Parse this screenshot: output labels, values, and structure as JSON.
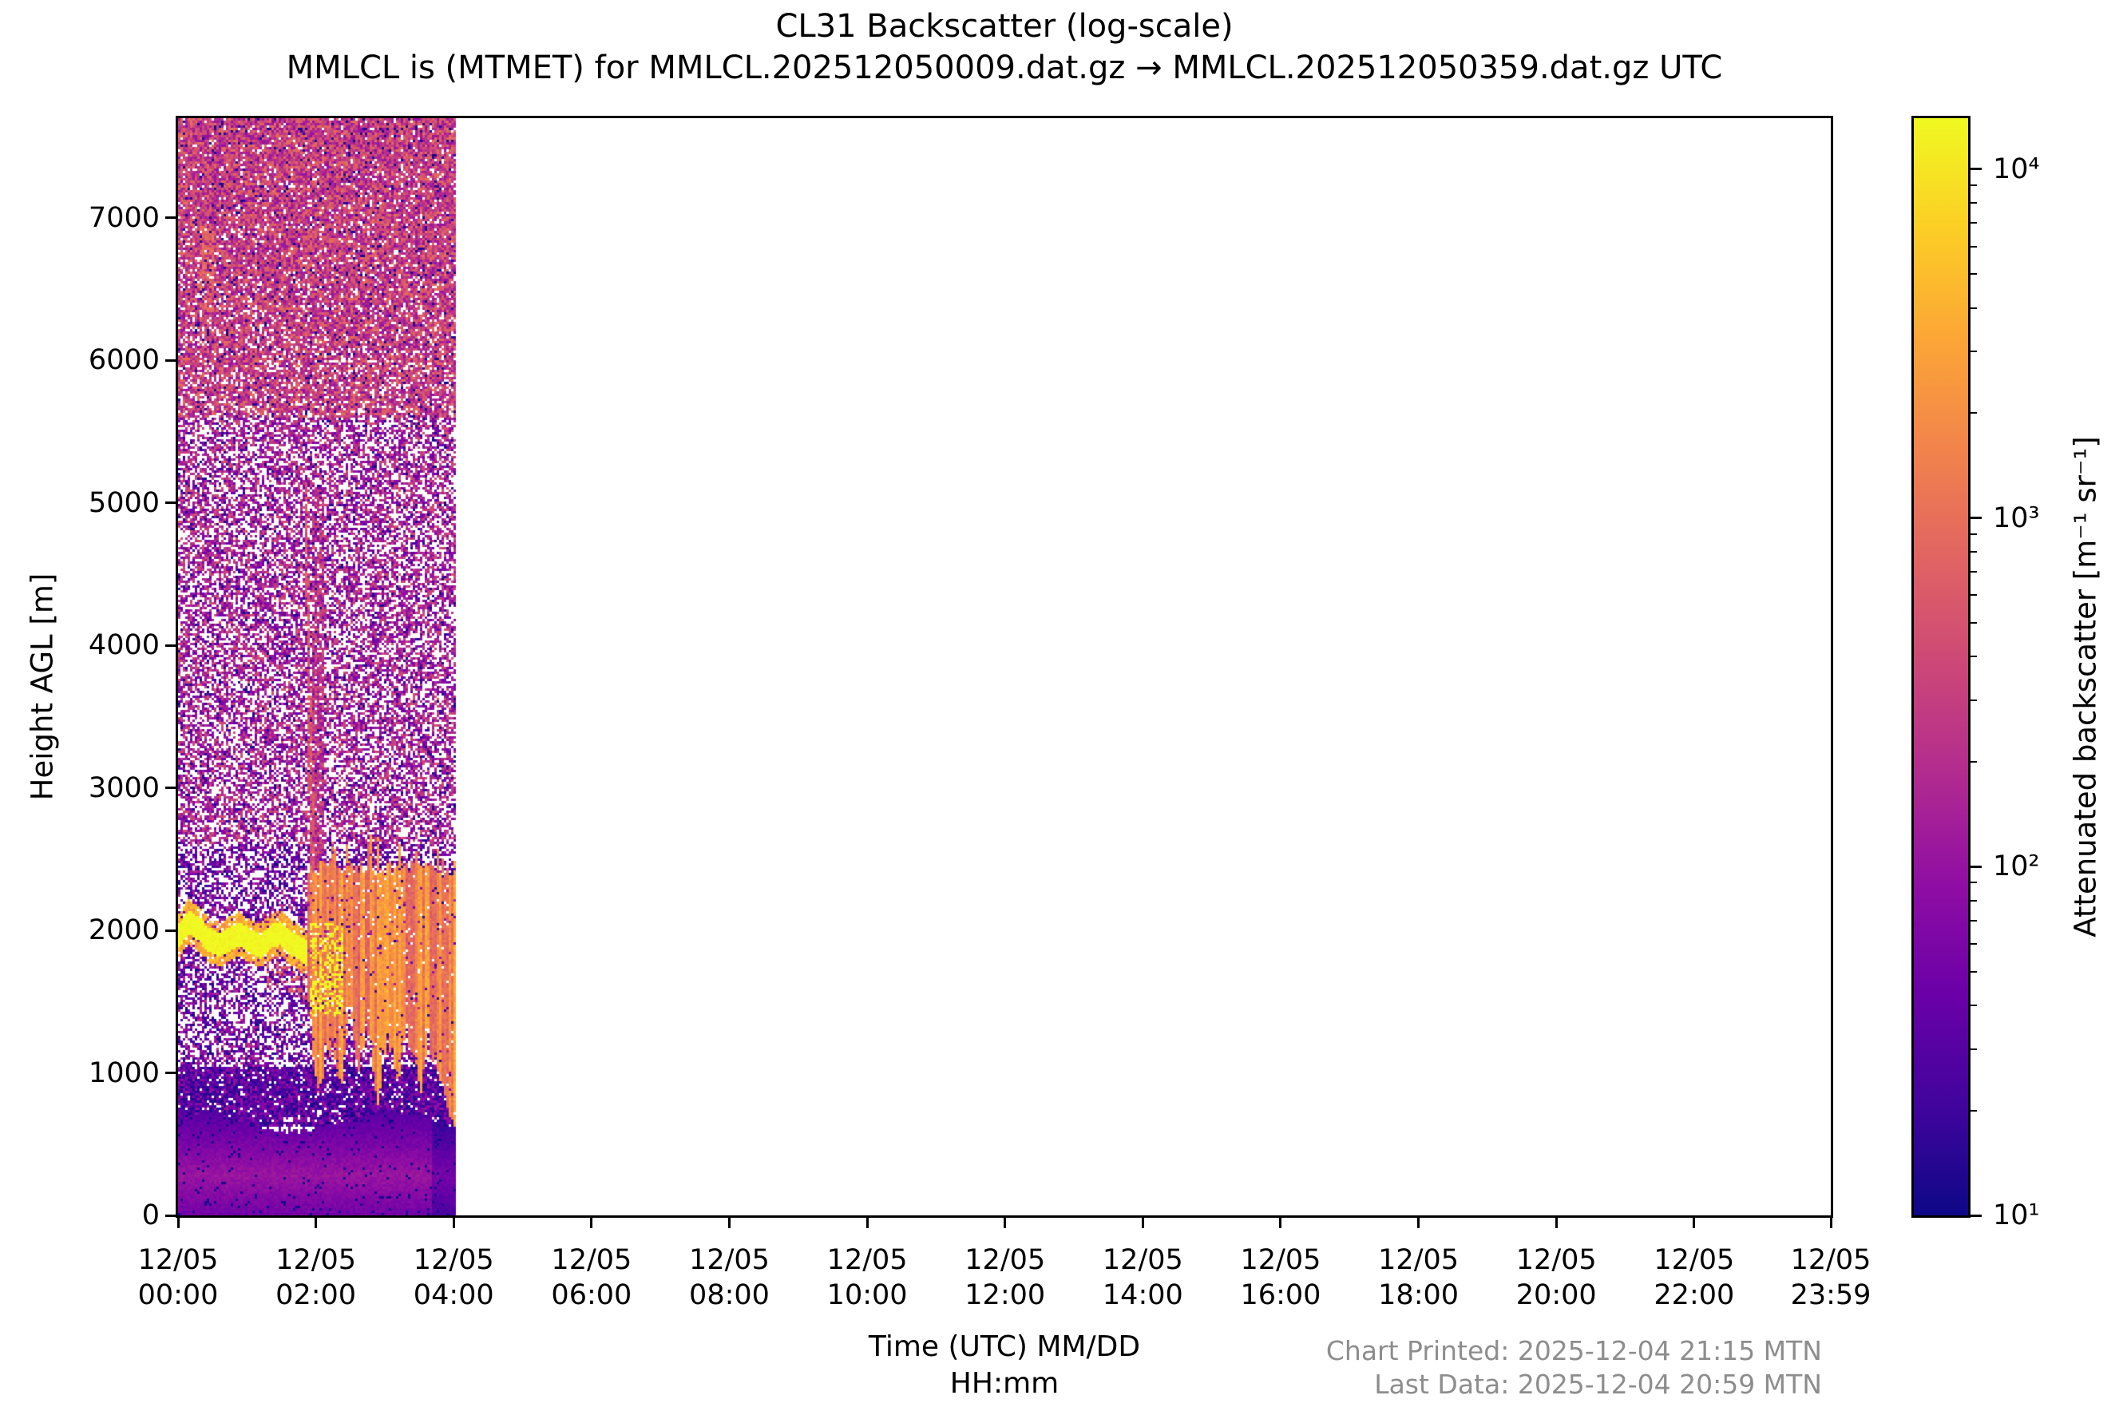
{
  "chart_data": {
    "type": "heatmap",
    "title": "CL31 Backscatter (log-scale)",
    "subtitle": "MMLCL is (MTMET) for MMLCL.202512050009.dat.gz → MMLCL.202512050359.dat.gz UTC",
    "xlabel_line1": "Time (UTC) MM/DD",
    "xlabel_line2": "HH:mm",
    "ylabel": "Height AGL [m]",
    "colorbar_label": "Attenuated backscatter [m⁻¹ sr⁻¹]",
    "ylim": [
      0,
      7700
    ],
    "xlim_hours": [
      0,
      23.983
    ],
    "grid": false,
    "y_ticks": [
      0,
      1000,
      2000,
      3000,
      4000,
      5000,
      6000,
      7000
    ],
    "x_ticks": [
      {
        "hours": 0,
        "date": "12/05",
        "time": "00:00"
      },
      {
        "hours": 2,
        "date": "12/05",
        "time": "02:00"
      },
      {
        "hours": 4,
        "date": "12/05",
        "time": "04:00"
      },
      {
        "hours": 6,
        "date": "12/05",
        "time": "06:00"
      },
      {
        "hours": 8,
        "date": "12/05",
        "time": "08:00"
      },
      {
        "hours": 10,
        "date": "12/05",
        "time": "10:00"
      },
      {
        "hours": 12,
        "date": "12/05",
        "time": "12:00"
      },
      {
        "hours": 14,
        "date": "12/05",
        "time": "14:00"
      },
      {
        "hours": 16,
        "date": "12/05",
        "time": "16:00"
      },
      {
        "hours": 18,
        "date": "12/05",
        "time": "18:00"
      },
      {
        "hours": 20,
        "date": "12/05",
        "time": "20:00"
      },
      {
        "hours": 22,
        "date": "12/05",
        "time": "22:00"
      },
      {
        "hours": 23.983,
        "date": "12/05",
        "time": "23:59"
      }
    ],
    "colorbar_ticks": [
      {
        "value": 10,
        "label": "10¹"
      },
      {
        "value": 100,
        "label": "10²"
      },
      {
        "value": 1000,
        "label": "10³"
      },
      {
        "value": 10000,
        "label": "10⁴"
      }
    ],
    "value_scale": {
      "scale": "log",
      "vmin": 10,
      "vmax": 14000
    },
    "colormap": {
      "name": "plasma",
      "stops": [
        {
          "pos": 0.0,
          "color": "#0d0887"
        },
        {
          "pos": 0.1,
          "color": "#41049d"
        },
        {
          "pos": 0.2,
          "color": "#6a00a8"
        },
        {
          "pos": 0.3,
          "color": "#8f0da4"
        },
        {
          "pos": 0.4,
          "color": "#b12a90"
        },
        {
          "pos": 0.5,
          "color": "#cc4778"
        },
        {
          "pos": 0.6,
          "color": "#e16462"
        },
        {
          "pos": 0.7,
          "color": "#f2844b"
        },
        {
          "pos": 0.8,
          "color": "#fca636"
        },
        {
          "pos": 0.9,
          "color": "#fcce25"
        },
        {
          "pos": 1.0,
          "color": "#f0f921"
        }
      ]
    },
    "data_coverage_hours": [
      0,
      4
    ],
    "features": {
      "noise_bands": [
        {
          "h_range": [
            5600,
            7700
          ],
          "density": 0.8,
          "logv_range": [
            1.95,
            3.0
          ],
          "dark_dot_prob": 0.05
        },
        {
          "h_range": [
            2600,
            5600
          ],
          "density": 0.62,
          "logv_range": [
            1.55,
            2.7
          ],
          "dark_dot_prob": 0.07
        },
        {
          "h_range": [
            1050,
            2600
          ],
          "density": 0.57,
          "logv_range": [
            1.2,
            2.35
          ],
          "dark_dot_prob": 0.08
        },
        {
          "h_range": [
            620,
            1050
          ],
          "density": 0.92,
          "logv_range": [
            1.1,
            2.05
          ],
          "dark_dot_prob": 0.1
        }
      ],
      "boundary_layer": {
        "top_m": 640,
        "top_wobble_m": 70,
        "peak_h_m": 280,
        "peak_logv": 1.95,
        "logv_falloff": 0.35,
        "dark_dot_prob": 0.05,
        "late_dark_after_h": 3.7,
        "late_dark_delta": 0.3
      },
      "cloud_band": {
        "t_range": [
          0,
          1.88
        ],
        "half_thickness_m": 85,
        "core_logv": 4.15,
        "fringe_logv": 3.3,
        "path": [
          [
            0,
            1950
          ],
          [
            0.15,
            2060
          ],
          [
            0.3,
            2010
          ],
          [
            0.45,
            1930
          ],
          [
            0.6,
            1900
          ],
          [
            0.75,
            1940
          ],
          [
            0.9,
            1975
          ],
          [
            1.05,
            1920
          ],
          [
            1.2,
            1890
          ],
          [
            1.35,
            1960
          ],
          [
            1.5,
            1980
          ],
          [
            1.65,
            1905
          ],
          [
            1.8,
            1870
          ],
          [
            1.88,
            1830
          ]
        ],
        "drip_prob": 0.3,
        "drip_logv_range": [
          2.5,
          3.1
        ]
      },
      "virga_streak": {
        "t_range": [
          1.85,
          1.95
        ],
        "h_top": 5150,
        "h_bottom": 2400,
        "logv_range": [
          2.55,
          2.95
        ],
        "prob": 0.75
      },
      "high_plume": {
        "t_range": [
          0.33,
          0.52
        ],
        "h_range": [
          6350,
          6950
        ],
        "density": 0.45,
        "logv_range": [
          2.8,
          3.1
        ]
      },
      "upper_column": {
        "t_range": [
          1.93,
          2.12
        ],
        "h_range": [
          2400,
          5100
        ],
        "density": 0.8,
        "logv_range": [
          2.0,
          2.75
        ]
      },
      "precipitation": {
        "t_range": [
          1.88,
          4.0
        ],
        "top_m": 2380,
        "top_jitter_m": 320,
        "gap_prob": 0.07,
        "logv_range": [
          2.85,
          3.55
        ],
        "bottom_profile": [
          [
            1.88,
            1650
          ],
          [
            1.95,
            1150
          ],
          [
            2.05,
            800
          ],
          [
            2.2,
            1250
          ],
          [
            2.35,
            900
          ],
          [
            2.5,
            1400
          ],
          [
            2.6,
            1000
          ],
          [
            2.75,
            1350
          ],
          [
            2.9,
            850
          ],
          [
            3.05,
            1300
          ],
          [
            3.2,
            950
          ],
          [
            3.35,
            1300
          ],
          [
            3.5,
            850
          ],
          [
            3.65,
            1250
          ],
          [
            3.8,
            900
          ],
          [
            3.95,
            680
          ]
        ],
        "yellow_core": {
          "t_range": [
            1.92,
            2.4
          ],
          "h_range": [
            1400,
            2050
          ],
          "logv": 4.0,
          "prob": 0.45
        }
      }
    }
  },
  "footer": {
    "printed": "Chart Printed: 2025-12-04 21:15 MTN",
    "last_data": "Last Data: 2025-12-04 20:59 MTN"
  }
}
